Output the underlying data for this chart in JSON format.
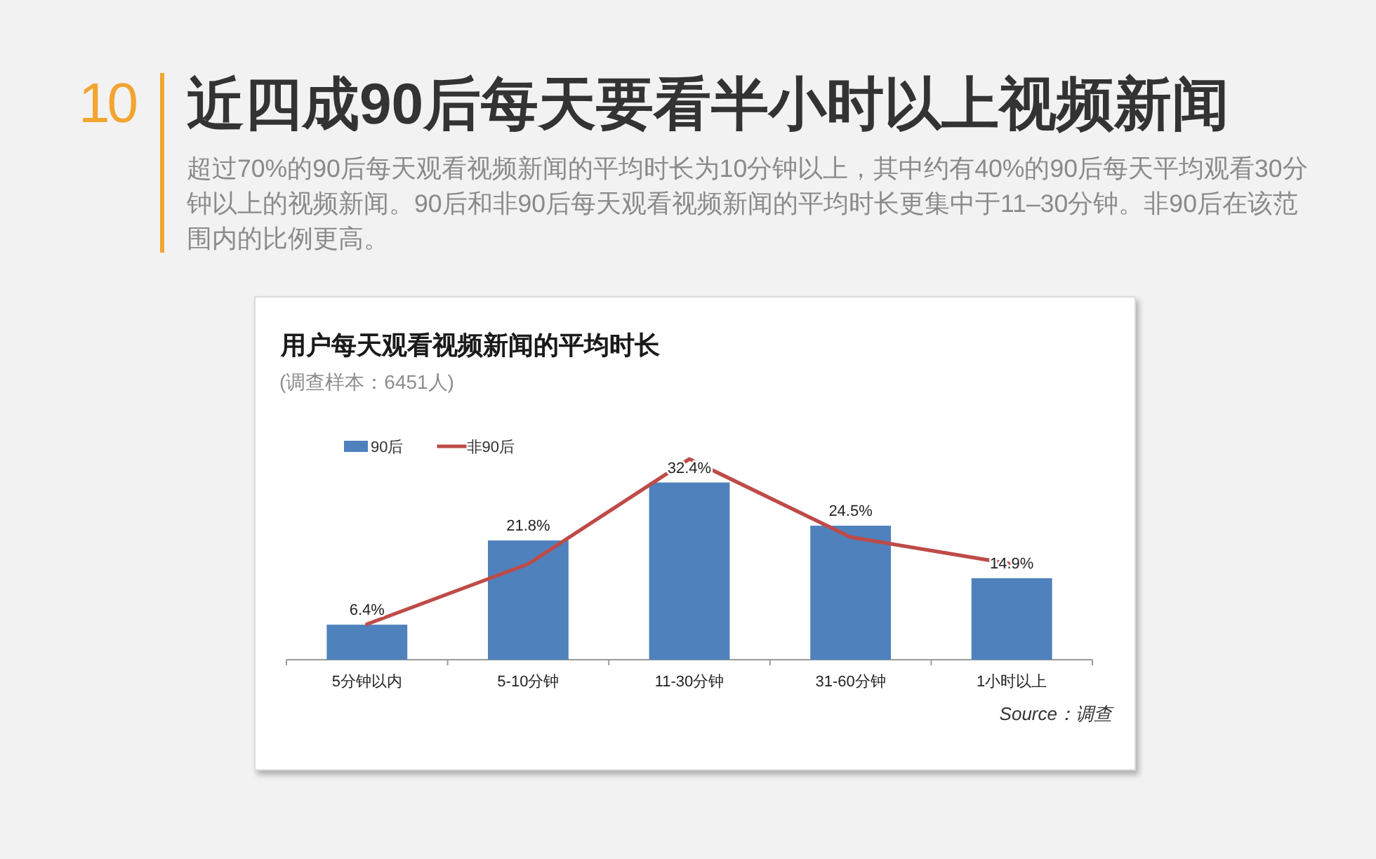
{
  "chart_data": {
    "type": "bar",
    "title": "用户每天观看视频新闻的平均时长",
    "subtitle": "(调查样本：6451人)",
    "annotations": [
      "10",
      "近四成90后每天要看半小时以上视频新闻",
      "超过70%的90后每天观看视频新闻的平均时长为10分钟以上，其中约有40%的90后每天平均观看30分钟以上的视频新闻。90后和非90后每天观看视频新闻的平均时长更集中于11–30分钟。非90后在该范围内的比例更高。",
      "Source：调查"
    ],
    "categories": [
      "5分钟以内",
      "5-10分钟",
      "11-30分钟",
      "31-60分钟",
      "1小时以上"
    ],
    "series": [
      {
        "name": "90后",
        "color": "#4f81bd",
        "values": [
          6.4,
          21.8,
          32.4,
          24.5,
          14.9
        ],
        "value_labels": [
          "6.4%",
          "21.8%",
          "32.4%",
          "24.5%",
          "14.9%"
        ]
      },
      {
        "name": "非90后",
        "type": "line",
        "color": "#be4b48",
        "values": [
          6.5,
          17.5,
          36.7,
          22.4,
          17.5
        ]
      }
    ],
    "legend": "top left"
  }
}
